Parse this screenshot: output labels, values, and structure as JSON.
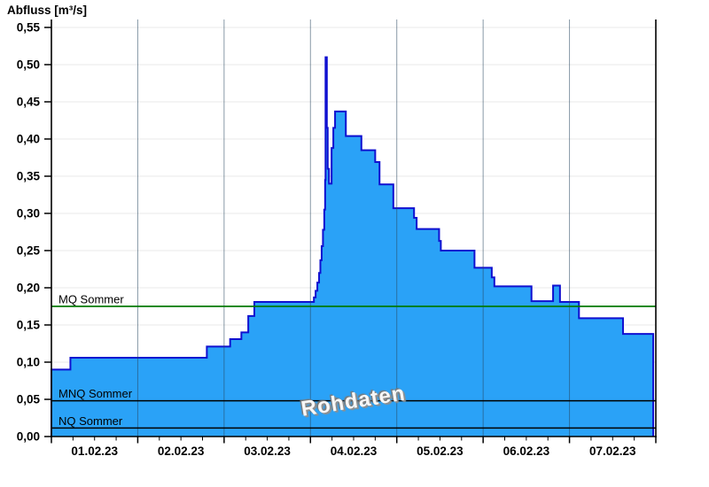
{
  "title": "Abfluss [m³/s]",
  "watermark": "Rohdaten",
  "colors": {
    "background": "#ffffff",
    "area_fill": "#2aa2f7",
    "area_stroke": "#1010d0",
    "grid_horizontal": "#e9e9e9",
    "grid_vertical_day": "rgba(38,70,95,0.55)",
    "mq_line": "#007a00",
    "mnq_line": "#000000",
    "nq_line": "#000000",
    "axis": "#000000",
    "tick_label": "#000000"
  },
  "chart_data": {
    "type": "area",
    "title": "Abfluss [m³/s]",
    "series_note": "step (staircase) raw discharge data, t in days since 01.02.23 00:00, v in m³/s",
    "x_axis": {
      "tick_labels": [
        "01.02.23",
        "02.02.23",
        "03.02.23",
        "04.02.23",
        "05.02.23",
        "06.02.23",
        "07.02.23"
      ],
      "days_span": 7,
      "minor_ticks_per_day": 4,
      "grid": true
    },
    "y_axis": {
      "min": 0,
      "max": 0.5607,
      "tick_values": [
        0,
        0.05,
        0.1,
        0.15,
        0.2,
        0.25,
        0.3,
        0.35,
        0.4,
        0.45,
        0.5,
        0.55
      ],
      "tick_labels": [
        "0,00",
        "0,05",
        "0,10",
        "0,15",
        "0,20",
        "0,25",
        "0,30",
        "0,35",
        "0,40",
        "0,45",
        "0,50",
        "0,55"
      ],
      "grid": true
    },
    "reference_lines": [
      {
        "label": "MQ Sommer",
        "value": 0.175,
        "color": "#007a00"
      },
      {
        "label": "MNQ Sommer",
        "value": 0.048,
        "color": "#000000"
      },
      {
        "label": "NQ Sommer",
        "value": 0.0115,
        "color": "#000000"
      }
    ],
    "series": [
      {
        "name": "Rohdaten",
        "unit": "m³/s",
        "end_t": 6.97,
        "peak_value": 0.51,
        "step_points": [
          [
            0.0,
            0.09
          ],
          [
            0.22,
            0.106
          ],
          [
            1.8,
            0.121
          ],
          [
            2.07,
            0.131
          ],
          [
            2.2,
            0.14
          ],
          [
            2.28,
            0.162
          ],
          [
            2.35,
            0.181
          ],
          [
            3.04,
            0.187
          ],
          [
            3.06,
            0.196
          ],
          [
            3.08,
            0.207
          ],
          [
            3.1,
            0.22
          ],
          [
            3.115,
            0.237
          ],
          [
            3.13,
            0.256
          ],
          [
            3.145,
            0.278
          ],
          [
            3.16,
            0.305
          ],
          [
            3.17,
            0.345
          ],
          [
            3.175,
            0.51
          ],
          [
            3.19,
            0.415
          ],
          [
            3.2,
            0.36
          ],
          [
            3.215,
            0.34
          ],
          [
            3.245,
            0.388
          ],
          [
            3.265,
            0.415
          ],
          [
            3.285,
            0.437
          ],
          [
            3.41,
            0.404
          ],
          [
            3.59,
            0.385
          ],
          [
            3.75,
            0.369
          ],
          [
            3.8,
            0.339
          ],
          [
            3.96,
            0.307
          ],
          [
            4.2,
            0.294
          ],
          [
            4.23,
            0.279
          ],
          [
            4.49,
            0.263
          ],
          [
            4.51,
            0.25
          ],
          [
            4.9,
            0.227
          ],
          [
            5.1,
            0.214
          ],
          [
            5.13,
            0.202
          ],
          [
            5.56,
            0.182
          ],
          [
            5.81,
            0.203
          ],
          [
            5.89,
            0.181
          ],
          [
            6.11,
            0.159
          ],
          [
            6.62,
            0.138
          ]
        ]
      }
    ]
  }
}
